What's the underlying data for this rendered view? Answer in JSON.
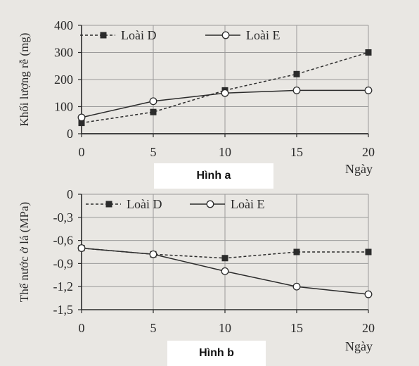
{
  "chart_data": [
    {
      "type": "line",
      "caption": "Hình a",
      "ylabel": "Khối lượng rễ (mg)",
      "xlabel": "Ngày",
      "x": [
        0,
        5,
        10,
        15,
        20
      ],
      "xticks": [
        "0",
        "5",
        "10",
        "15",
        "20"
      ],
      "ylim": [
        0,
        400
      ],
      "yticks": [
        "0",
        "100",
        "200",
        "300",
        "400"
      ],
      "grid": true,
      "legend_position": "top",
      "series": [
        {
          "name": "Loài D",
          "marker": "filled-square",
          "line": "dashed",
          "values": [
            40,
            80,
            160,
            220,
            300
          ]
        },
        {
          "name": "Loài E",
          "marker": "open-circle",
          "line": "solid",
          "values": [
            60,
            120,
            150,
            160,
            160
          ]
        }
      ]
    },
    {
      "type": "line",
      "caption": "Hình b",
      "ylabel": "Thế nước ở lá (MPa)",
      "xlabel": "Ngày",
      "x": [
        0,
        5,
        10,
        15,
        20
      ],
      "xticks": [
        "0",
        "5",
        "10",
        "15",
        "20"
      ],
      "ylim": [
        -1.5,
        0
      ],
      "yticks": [
        "0",
        "-0,3",
        "-0,6",
        "-0,9",
        "-1,2",
        "-1,5"
      ],
      "grid": true,
      "legend_position": "top",
      "series": [
        {
          "name": "Loài D",
          "marker": "filled-square",
          "line": "dashed",
          "values": [
            -0.7,
            -0.78,
            -0.83,
            -0.75,
            -0.75
          ]
        },
        {
          "name": "Loài E",
          "marker": "open-circle",
          "line": "solid",
          "values": [
            -0.7,
            -0.78,
            -1.0,
            -1.2,
            -1.3
          ]
        }
      ]
    }
  ],
  "colors": {
    "line": "#2b2b2b",
    "grid": "#9a9a9a",
    "background": "#e9e7e3"
  }
}
